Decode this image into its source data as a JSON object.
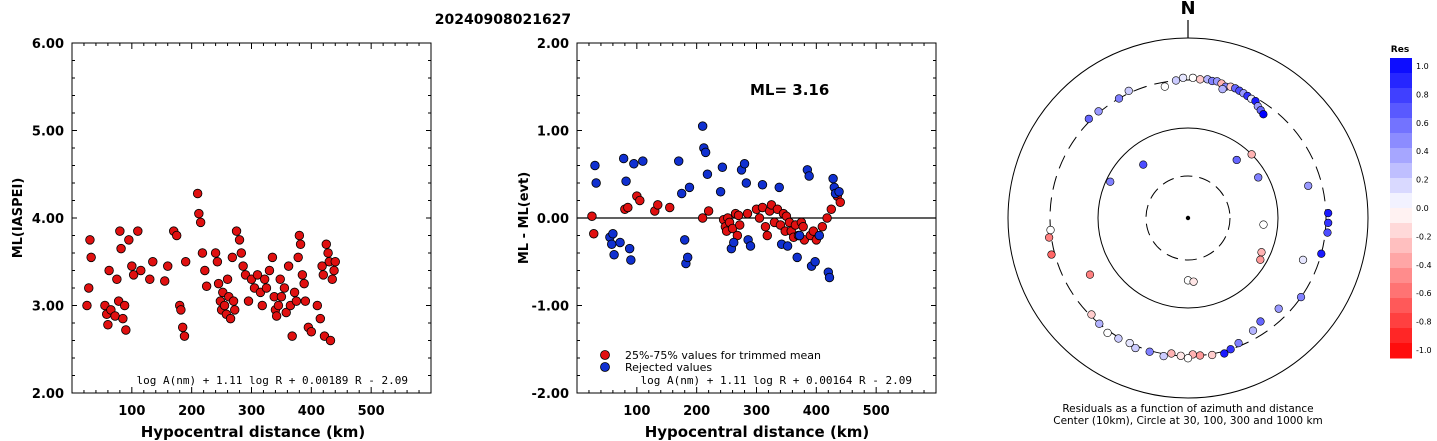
{
  "title": "20240908021627",
  "chart_data": [
    {
      "type": "scatter",
      "ylabel": "ML(IASPEI)",
      "xlabel": "Hypocentral distance (km)",
      "xlim": [
        0,
        600
      ],
      "ylim": [
        2.0,
        6.0
      ],
      "xticks": [
        "100",
        "200",
        "300",
        "400",
        "500"
      ],
      "yticks": [
        "2.00",
        "3.00",
        "4.00",
        "5.00",
        "6.00"
      ],
      "formula": "log A(nm) + 1.11 log R + 0.00189 R - 2.09",
      "colors": {
        "point": "#e01010"
      },
      "points": [
        [
          25,
          3.0
        ],
        [
          28,
          3.2
        ],
        [
          30,
          3.75
        ],
        [
          32,
          3.55
        ],
        [
          55,
          3.0
        ],
        [
          58,
          2.9
        ],
        [
          60,
          2.78
        ],
        [
          62,
          3.4
        ],
        [
          65,
          2.95
        ],
        [
          72,
          2.88
        ],
        [
          75,
          3.3
        ],
        [
          78,
          3.05
        ],
        [
          80,
          3.85
        ],
        [
          82,
          3.65
        ],
        [
          85,
          2.85
        ],
        [
          88,
          3.0
        ],
        [
          90,
          2.72
        ],
        [
          95,
          3.75
        ],
        [
          100,
          3.45
        ],
        [
          103,
          3.35
        ],
        [
          110,
          3.85
        ],
        [
          115,
          3.4
        ],
        [
          130,
          3.3
        ],
        [
          135,
          3.5
        ],
        [
          155,
          3.28
        ],
        [
          160,
          3.45
        ],
        [
          170,
          3.85
        ],
        [
          175,
          3.8
        ],
        [
          180,
          3.0
        ],
        [
          182,
          2.95
        ],
        [
          185,
          2.75
        ],
        [
          188,
          2.65
        ],
        [
          190,
          3.5
        ],
        [
          210,
          4.28
        ],
        [
          212,
          4.05
        ],
        [
          215,
          3.95
        ],
        [
          218,
          3.6
        ],
        [
          222,
          3.4
        ],
        [
          225,
          3.22
        ],
        [
          240,
          3.6
        ],
        [
          243,
          3.5
        ],
        [
          245,
          3.25
        ],
        [
          248,
          3.05
        ],
        [
          250,
          2.95
        ],
        [
          252,
          3.15
        ],
        [
          255,
          3.0
        ],
        [
          258,
          2.9
        ],
        [
          260,
          3.3
        ],
        [
          262,
          3.1
        ],
        [
          265,
          2.85
        ],
        [
          268,
          3.55
        ],
        [
          270,
          3.05
        ],
        [
          272,
          2.95
        ],
        [
          275,
          3.85
        ],
        [
          280,
          3.75
        ],
        [
          283,
          3.6
        ],
        [
          286,
          3.45
        ],
        [
          290,
          3.35
        ],
        [
          295,
          3.05
        ],
        [
          300,
          3.3
        ],
        [
          305,
          3.2
        ],
        [
          310,
          3.35
        ],
        [
          315,
          3.15
        ],
        [
          318,
          3.0
        ],
        [
          322,
          3.3
        ],
        [
          325,
          3.2
        ],
        [
          330,
          3.4
        ],
        [
          335,
          3.55
        ],
        [
          338,
          3.1
        ],
        [
          340,
          2.95
        ],
        [
          342,
          2.88
        ],
        [
          345,
          3.0
        ],
        [
          348,
          3.3
        ],
        [
          350,
          3.1
        ],
        [
          355,
          3.2
        ],
        [
          358,
          2.92
        ],
        [
          362,
          3.45
        ],
        [
          365,
          3.0
        ],
        [
          368,
          2.65
        ],
        [
          372,
          3.15
        ],
        [
          375,
          3.05
        ],
        [
          378,
          3.55
        ],
        [
          380,
          3.8
        ],
        [
          382,
          3.7
        ],
        [
          385,
          3.35
        ],
        [
          388,
          3.25
        ],
        [
          390,
          3.05
        ],
        [
          395,
          2.75
        ],
        [
          400,
          2.7
        ],
        [
          410,
          3.0
        ],
        [
          415,
          2.85
        ],
        [
          418,
          3.45
        ],
        [
          420,
          3.35
        ],
        [
          422,
          2.65
        ],
        [
          425,
          3.7
        ],
        [
          428,
          3.6
        ],
        [
          430,
          3.5
        ],
        [
          432,
          2.6
        ],
        [
          435,
          3.3
        ],
        [
          438,
          3.4
        ],
        [
          440,
          3.5
        ]
      ]
    },
    {
      "type": "scatter",
      "ylabel": "ML - ML(evt)",
      "xlabel": "Hypocentral distance (km)",
      "xlim": [
        0,
        600
      ],
      "ylim": [
        -2.0,
        2.0
      ],
      "xticks": [
        "100",
        "200",
        "300",
        "400",
        "500"
      ],
      "yticks": [
        "-2.00",
        "-1.00",
        "0.00",
        "1.00",
        "2.00"
      ],
      "annotation": "ML= 3.16",
      "formula": "log A(nm) + 1.11 log R + 0.00164 R - 2.09",
      "legend": [
        {
          "label": "25%-75% values for trimmed mean",
          "color": "#e01010"
        },
        {
          "label": "Rejected values",
          "color": "#1030d0"
        }
      ],
      "series": [
        {
          "name": "25%-75% values for trimmed mean",
          "points": [
            [
              25,
              0.02
            ],
            [
              28,
              -0.18
            ],
            [
              80,
              0.1
            ],
            [
              85,
              0.12
            ],
            [
              100,
              0.25
            ],
            [
              105,
              0.2
            ],
            [
              130,
              0.08
            ],
            [
              135,
              0.15
            ],
            [
              155,
              0.12
            ],
            [
              210,
              0.0
            ],
            [
              220,
              0.08
            ],
            [
              245,
              -0.02
            ],
            [
              248,
              -0.1
            ],
            [
              250,
              -0.15
            ],
            [
              252,
              0.0
            ],
            [
              255,
              -0.05
            ],
            [
              260,
              -0.12
            ],
            [
              265,
              0.05
            ],
            [
              268,
              -0.2
            ],
            [
              270,
              0.03
            ],
            [
              272,
              -0.08
            ],
            [
              285,
              0.05
            ],
            [
              300,
              0.1
            ],
            [
              305,
              0.0
            ],
            [
              310,
              0.12
            ],
            [
              315,
              -0.1
            ],
            [
              318,
              -0.2
            ],
            [
              322,
              0.08
            ],
            [
              325,
              0.15
            ],
            [
              330,
              -0.05
            ],
            [
              335,
              0.1
            ],
            [
              340,
              -0.08
            ],
            [
              345,
              0.05
            ],
            [
              348,
              -0.15
            ],
            [
              350,
              0.02
            ],
            [
              355,
              -0.05
            ],
            [
              358,
              -0.15
            ],
            [
              362,
              -0.22
            ],
            [
              365,
              -0.08
            ],
            [
              370,
              -0.2
            ],
            [
              375,
              -0.05
            ],
            [
              378,
              -0.1
            ],
            [
              380,
              -0.25
            ],
            [
              390,
              -0.2
            ],
            [
              395,
              -0.15
            ],
            [
              400,
              -0.25
            ],
            [
              410,
              -0.1
            ],
            [
              418,
              0.0
            ],
            [
              425,
              0.1
            ],
            [
              435,
              0.25
            ],
            [
              440,
              0.18
            ]
          ]
        },
        {
          "name": "Rejected values",
          "points": [
            [
              30,
              0.6
            ],
            [
              32,
              0.4
            ],
            [
              55,
              -0.22
            ],
            [
              58,
              -0.3
            ],
            [
              60,
              -0.18
            ],
            [
              62,
              -0.42
            ],
            [
              72,
              -0.28
            ],
            [
              78,
              0.68
            ],
            [
              82,
              0.42
            ],
            [
              88,
              -0.35
            ],
            [
              90,
              -0.48
            ],
            [
              95,
              0.62
            ],
            [
              110,
              0.65
            ],
            [
              170,
              0.65
            ],
            [
              175,
              0.28
            ],
            [
              180,
              -0.25
            ],
            [
              182,
              -0.52
            ],
            [
              185,
              -0.45
            ],
            [
              188,
              0.35
            ],
            [
              210,
              1.05
            ],
            [
              212,
              0.8
            ],
            [
              215,
              0.75
            ],
            [
              218,
              0.5
            ],
            [
              240,
              0.3
            ],
            [
              243,
              0.58
            ],
            [
              258,
              -0.35
            ],
            [
              262,
              -0.28
            ],
            [
              275,
              0.55
            ],
            [
              280,
              0.62
            ],
            [
              283,
              0.4
            ],
            [
              286,
              -0.25
            ],
            [
              290,
              -0.32
            ],
            [
              310,
              0.38
            ],
            [
              338,
              0.35
            ],
            [
              342,
              -0.3
            ],
            [
              352,
              -0.32
            ],
            [
              368,
              -0.45
            ],
            [
              372,
              -0.2
            ],
            [
              385,
              0.55
            ],
            [
              388,
              0.48
            ],
            [
              392,
              -0.55
            ],
            [
              398,
              -0.5
            ],
            [
              405,
              -0.2
            ],
            [
              420,
              -0.62
            ],
            [
              422,
              -0.68
            ],
            [
              428,
              0.45
            ],
            [
              430,
              0.35
            ],
            [
              432,
              0.28
            ],
            [
              438,
              0.3
            ]
          ]
        }
      ]
    },
    {
      "type": "polar-scatter",
      "north_label": "N",
      "caption_line1": "Residuals as a function of azimuth and distance",
      "caption_line2": "Center (10km), Circle at 30, 100, 300 and 1000 km",
      "colorbar_title": "Res",
      "colorbar_ticks": [
        "1.0",
        "0.8",
        "0.6",
        "0.4",
        "0.2",
        "0.0",
        "-0.2",
        "-0.4",
        "-0.6",
        "-0.8",
        "-1.0"
      ],
      "points": [
        [
          355,
          300,
          0.2
        ],
        [
          358,
          320,
          0.1
        ],
        [
          2,
          320,
          0.0
        ],
        [
          5,
          310,
          -0.2
        ],
        [
          8,
          318,
          0.3
        ],
        [
          10,
          310,
          0.5
        ],
        [
          12,
          315,
          0.4
        ],
        [
          14,
          305,
          -0.3
        ],
        [
          16,
          290,
          0.5
        ],
        [
          18,
          300,
          -0.2
        ],
        [
          20,
          300,
          0.6
        ],
        [
          22,
          295,
          0.7
        ],
        [
          24,
          290,
          0.4
        ],
        [
          26,
          285,
          0.8
        ],
        [
          28,
          280,
          0.1
        ],
        [
          30,
          280,
          0.9
        ],
        [
          32,
          260,
          0.4
        ],
        [
          34,
          250,
          0.6
        ],
        [
          36,
          240,
          1.0
        ],
        [
          15,
          270,
          0.3
        ],
        [
          350,
          270,
          0.0
        ],
        [
          335,
          320,
          0.2
        ],
        [
          330,
          300,
          0.5
        ],
        [
          320,
          310,
          0.4
        ],
        [
          315,
          320,
          0.6
        ],
        [
          40,
          70,
          0.6
        ],
        [
          60,
          80,
          0.5
        ],
        [
          75,
          220,
          0.4
        ],
        [
          88,
          320,
          0.9
        ],
        [
          92,
          320,
          0.8
        ],
        [
          96,
          320,
          0.7
        ],
        [
          105,
          300,
          0.9
        ],
        [
          110,
          210,
          0.1
        ],
        [
          125,
          300,
          0.5
        ],
        [
          135,
          240,
          0.4
        ],
        [
          145,
          230,
          0.6
        ],
        [
          150,
          250,
          0.3
        ],
        [
          158,
          280,
          0.5
        ],
        [
          162,
          300,
          0.8
        ],
        [
          165,
          320,
          0.9
        ],
        [
          170,
          310,
          -0.2
        ],
        [
          175,
          300,
          -0.4
        ],
        [
          178,
          290,
          -0.3
        ],
        [
          180,
          320,
          0.0
        ],
        [
          183,
          300,
          -0.1
        ],
        [
          187,
          290,
          -0.3
        ],
        [
          190,
          320,
          0.2
        ],
        [
          196,
          310,
          0.5
        ],
        [
          202,
          320,
          0.2
        ],
        [
          205,
          300,
          0.1
        ],
        [
          210,
          310,
          0.2
        ],
        [
          215,
          320,
          0.0
        ],
        [
          220,
          300,
          0.3
        ],
        [
          225,
          290,
          -0.2
        ],
        [
          240,
          170,
          -0.5
        ],
        [
          255,
          330,
          -0.6
        ],
        [
          262,
          320,
          -0.5
        ],
        [
          265,
          300,
          0.0
        ],
        [
          180,
          50,
          0.0
        ],
        [
          175,
          52,
          -0.1
        ],
        [
          95,
          70,
          0.0
        ],
        [
          115,
          80,
          -0.3
        ],
        [
          295,
          90,
          0.5
        ],
        [
          320,
          60,
          0.7
        ],
        [
          45,
          100,
          -0.3
        ],
        [
          120,
          85,
          -0.4
        ]
      ]
    }
  ]
}
